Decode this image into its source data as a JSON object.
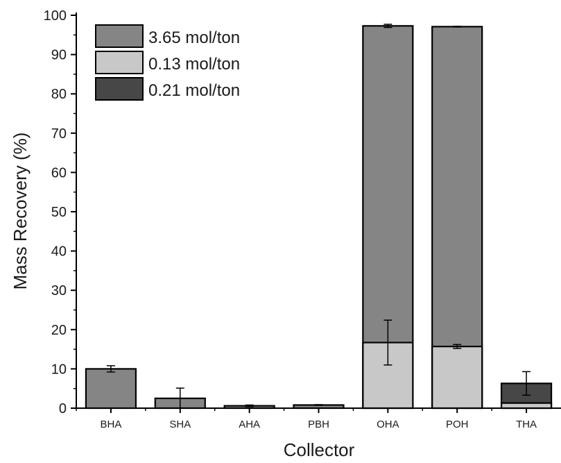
{
  "chart_data": {
    "type": "bar",
    "stacked": false,
    "xlabel": "Collector",
    "ylabel": "Mass Recovery (%)",
    "ylim": [
      0,
      100
    ],
    "yticks": [
      0,
      10,
      20,
      30,
      40,
      50,
      60,
      70,
      80,
      90,
      100
    ],
    "grid": false,
    "legend_position": "top-left",
    "categories": [
      "BHA",
      "SHA",
      "AHA",
      "PBH",
      "OHA",
      "POH",
      "THA"
    ],
    "series": [
      {
        "name": "3.65 mol/ton",
        "color": "#858585",
        "values": [
          10.0,
          2.5,
          0.6,
          0.8,
          97.3,
          97.1,
          null
        ],
        "errors": [
          0.8,
          2.6,
          0.2,
          0.1,
          0.4,
          0.1,
          null
        ]
      },
      {
        "name": "0.13 mol/ton",
        "color": "#c8c8c8",
        "values": [
          null,
          null,
          null,
          null,
          16.7,
          15.7,
          1.3
        ],
        "errors": [
          null,
          null,
          null,
          null,
          5.7,
          0.5,
          null
        ]
      },
      {
        "name": "0.21 mol/ton",
        "color": "#474747",
        "values": [
          null,
          null,
          null,
          null,
          null,
          null,
          6.3
        ],
        "errors": [
          null,
          null,
          null,
          null,
          null,
          null,
          3.0
        ]
      }
    ]
  }
}
